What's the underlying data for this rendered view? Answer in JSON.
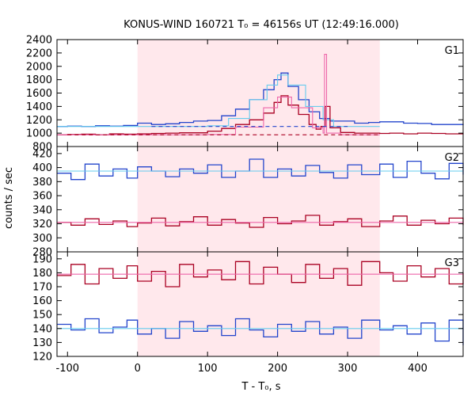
{
  "chart_data": {
    "type": "line",
    "title": "KONUS-WIND 160721 T₀ = 46156s UT (12:49:16.000)",
    "xlabel": "T - T₀, s",
    "ylabel": "counts / sec",
    "xlim": [
      -115,
      465
    ],
    "x_ticks": [
      -100,
      0,
      100,
      200,
      300,
      400
    ],
    "highlight_interval": [
      0,
      346
    ],
    "colors": {
      "high_series": "#2244cc",
      "high_fit": "#66ccee",
      "low_series": "#aa0022",
      "low_fit": "#ee66aa",
      "highlight": "#ffe8ec"
    },
    "panels": [
      {
        "label": "G1",
        "ylim": [
          800,
          2400
        ],
        "y_ticks": [
          800,
          1000,
          1200,
          1400,
          1600,
          1800,
          2000,
          2200,
          2400
        ],
        "series": [
          {
            "role": "high",
            "x": [
              -115,
              -100,
              -80,
              -60,
              -40,
              -20,
              0,
              20,
              40,
              60,
              80,
              100,
              120,
              140,
              160,
              180,
              195,
              205,
              215,
              230,
              245,
              260,
              275,
              290,
              310,
              330,
              346,
              360,
              380,
              400,
              420,
              440,
              465
            ],
            "y": [
              1100,
              1105,
              1100,
              1110,
              1105,
              1115,
              1150,
              1130,
              1140,
              1160,
              1180,
              1190,
              1260,
              1360,
              1500,
              1650,
              1800,
              1900,
              1700,
              1500,
              1320,
              1220,
              1180,
              1180,
              1150,
              1160,
              1170,
              1170,
              1150,
              1145,
              1130,
              1130,
              1120
            ]
          },
          {
            "role": "high_fit",
            "x": [
              -115,
              0,
              100,
              130,
              160,
              185,
              200,
              215,
              240,
              265,
              280,
              346
            ],
            "y": [
              1100,
              1100,
              1110,
              1220,
              1500,
              1720,
              1870,
              1720,
              1400,
              1200,
              1100,
              1100
            ]
          },
          {
            "role": "low",
            "x": [
              -115,
              -100,
              -80,
              -60,
              -40,
              -20,
              0,
              20,
              40,
              60,
              80,
              100,
              120,
              140,
              160,
              180,
              195,
              205,
              215,
              230,
              245,
              255,
              262,
              268,
              275,
              290,
              310,
              330,
              346,
              360,
              380,
              400,
              420,
              440,
              465
            ],
            "y": [
              975,
              980,
              985,
              975,
              990,
              985,
              990,
              995,
              1000,
              1005,
              1005,
              1030,
              1070,
              1130,
              1200,
              1300,
              1460,
              1560,
              1420,
              1280,
              1130,
              1060,
              1100,
              1400,
              1080,
              1010,
              1000,
              1000,
              995,
              1000,
              990,
              1000,
              995,
              990,
              985
            ]
          },
          {
            "role": "low_fit",
            "x": [
              -115,
              0,
              100,
              140,
              180,
              200,
              220,
              250,
              265,
              267,
              270,
              290,
              346
            ],
            "y": [
              975,
              975,
              980,
              1090,
              1380,
              1540,
              1380,
              1080,
              1000,
              2180,
              1000,
              975,
              975
            ]
          },
          {
            "role": "high_bg",
            "x": [
              20,
              300
            ],
            "y": [
              1100,
              1100
            ]
          },
          {
            "role": "low_bg",
            "x": [
              -100,
              346
            ],
            "y": [
              975,
              975
            ]
          }
        ]
      },
      {
        "label": "G2",
        "ylim": [
          280,
          430
        ],
        "y_ticks": [
          280,
          300,
          320,
          340,
          360,
          380,
          400,
          420
        ],
        "series": [
          {
            "role": "high",
            "x": [
              -115,
              -95,
              -75,
              -55,
              -35,
              -15,
              0,
              20,
              40,
              60,
              80,
              100,
              120,
              140,
              160,
              180,
              200,
              220,
              240,
              260,
              280,
              300,
              320,
              346,
              365,
              385,
              405,
              425,
              445,
              465
            ],
            "y": [
              392,
              383,
              405,
              388,
              398,
              385,
              401,
              395,
              387,
              398,
              392,
              404,
              386,
              395,
              412,
              386,
              398,
              388,
              403,
              393,
              385,
              404,
              390,
              405,
              386,
              409,
              392,
              384,
              406,
              390
            ]
          },
          {
            "role": "high_fit",
            "x": [
              -115,
              465
            ],
            "y": [
              395,
              395
            ]
          },
          {
            "role": "low",
            "x": [
              -115,
              -95,
              -75,
              -55,
              -35,
              -15,
              0,
              20,
              40,
              60,
              80,
              100,
              120,
              140,
              160,
              180,
              200,
              220,
              240,
              260,
              280,
              300,
              320,
              346,
              365,
              385,
              405,
              425,
              445,
              465
            ],
            "y": [
              322,
              318,
              327,
              319,
              324,
              316,
              321,
              328,
              317,
              323,
              330,
              318,
              326,
              321,
              315,
              329,
              320,
              324,
              332,
              318,
              323,
              327,
              316,
              324,
              331,
              318,
              325,
              320,
              328,
              318
            ]
          },
          {
            "role": "low_fit",
            "x": [
              -115,
              465
            ],
            "y": [
              322,
              322
            ]
          }
        ]
      },
      {
        "label": "G3",
        "ylim": [
          120,
          195
        ],
        "y_ticks": [
          120,
          130,
          140,
          150,
          160,
          170,
          180,
          190
        ],
        "series": [
          {
            "role": "low",
            "x": [
              -115,
              -95,
              -75,
              -55,
              -35,
              -15,
              0,
              20,
              40,
              60,
              80,
              100,
              120,
              140,
              160,
              180,
              200,
              220,
              240,
              260,
              280,
              300,
              320,
              346,
              365,
              385,
              405,
              425,
              445,
              465
            ],
            "y": [
              178,
              186,
              172,
              183,
              176,
              185,
              174,
              181,
              170,
              186,
              177,
              182,
              175,
              188,
              172,
              184,
              179,
              173,
              186,
              176,
              183,
              171,
              188,
              180,
              174,
              185,
              177,
              183,
              172,
              180
            ]
          },
          {
            "role": "low_fit",
            "x": [
              -115,
              465
            ],
            "y": [
              179,
              179
            ]
          },
          {
            "role": "high",
            "x": [
              -115,
              -95,
              -75,
              -55,
              -35,
              -15,
              0,
              20,
              40,
              60,
              80,
              100,
              120,
              140,
              160,
              180,
              200,
              220,
              240,
              260,
              280,
              300,
              320,
              346,
              365,
              385,
              405,
              425,
              445,
              465
            ],
            "y": [
              143,
              139,
              147,
              137,
              141,
              146,
              136,
              140,
              133,
              145,
              138,
              142,
              135,
              147,
              139,
              134,
              143,
              138,
              145,
              136,
              141,
              133,
              146,
              139,
              142,
              136,
              144,
              131,
              146,
              128
            ]
          },
          {
            "role": "high_fit",
            "x": [
              -115,
              465
            ],
            "y": [
              140,
              140
            ]
          }
        ]
      }
    ]
  }
}
